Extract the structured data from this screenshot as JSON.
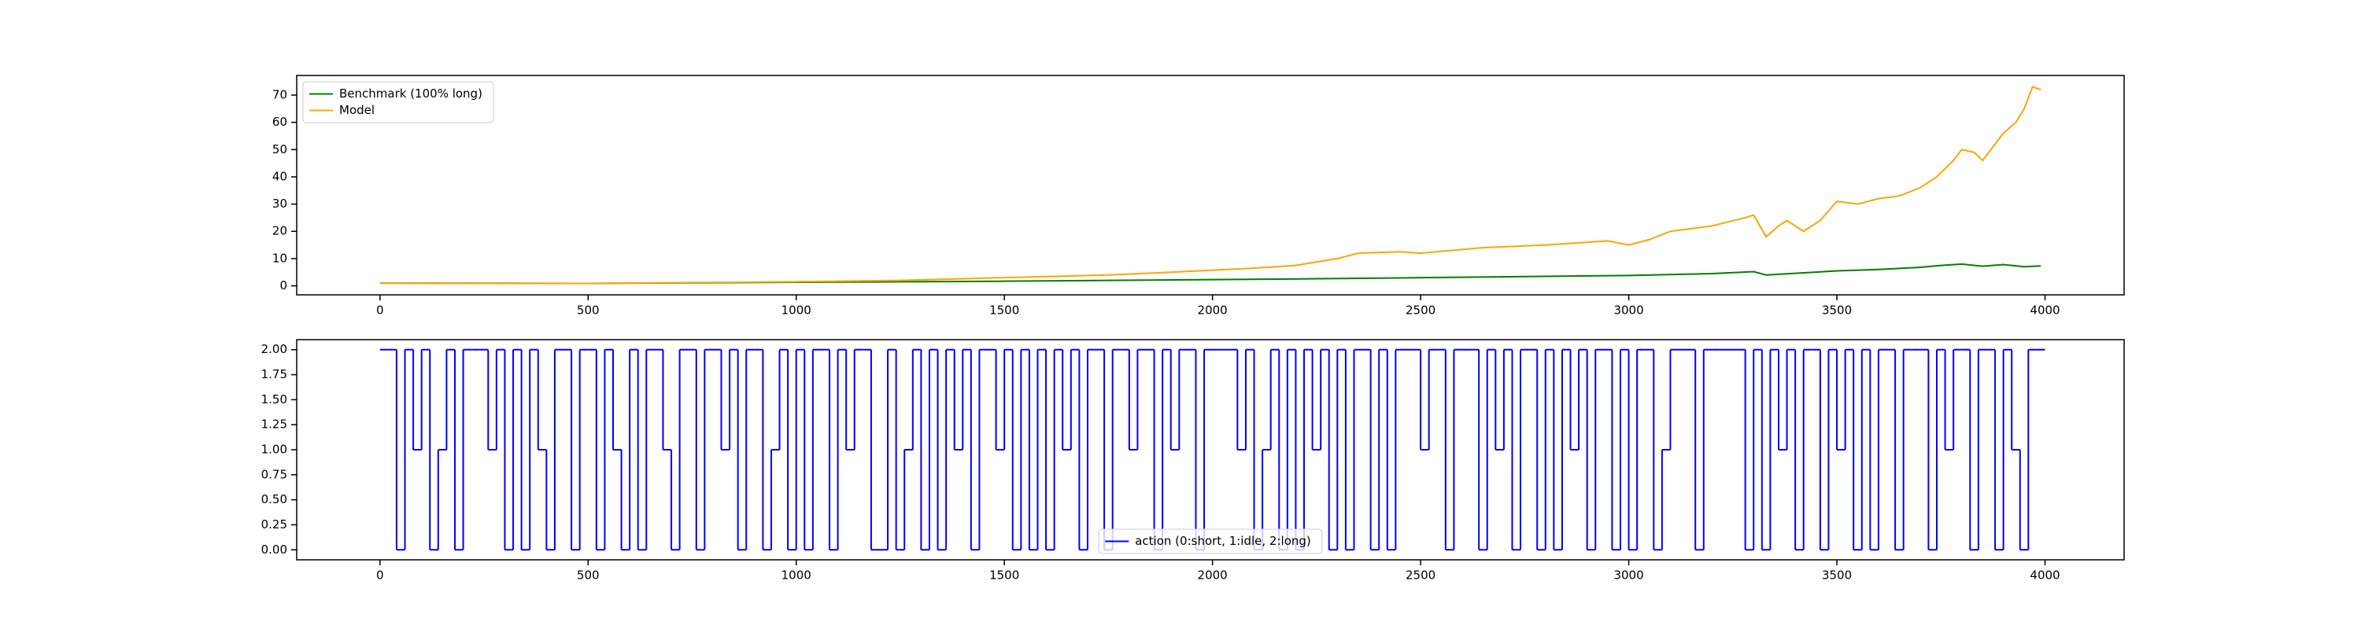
{
  "chart_data": [
    {
      "type": "line",
      "xlim": [
        -200,
        4190
      ],
      "ylim": [
        -3.3,
        77.2
      ],
      "xticks": [
        0,
        500,
        1000,
        1500,
        2000,
        2500,
        3000,
        3500,
        4000
      ],
      "yticks": [
        0,
        10,
        20,
        30,
        40,
        50,
        60,
        70
      ],
      "legend": "upper left",
      "series": [
        {
          "name": "Benchmark (100% long)",
          "color": "#008000",
          "x": [
            0,
            250,
            500,
            750,
            1000,
            1250,
            1500,
            1750,
            2000,
            2250,
            2500,
            2750,
            3000,
            3200,
            3300,
            3330,
            3400,
            3500,
            3600,
            3700,
            3750,
            3800,
            3850,
            3900,
            3950,
            3990
          ],
          "values": [
            1,
            0.95,
            0.9,
            1.1,
            1.3,
            1.5,
            1.7,
            2.0,
            2.3,
            2.6,
            3.0,
            3.4,
            3.8,
            4.5,
            5.2,
            4.0,
            4.6,
            5.5,
            6.0,
            6.8,
            7.5,
            8.0,
            7.2,
            7.8,
            7.0,
            7.3
          ]
        },
        {
          "name": "Model",
          "color": "#ffa500",
          "x": [
            0,
            250,
            500,
            750,
            1000,
            1250,
            1500,
            1750,
            1900,
            2100,
            2200,
            2300,
            2350,
            2450,
            2500,
            2650,
            2800,
            2950,
            3000,
            3050,
            3100,
            3200,
            3280,
            3300,
            3330,
            3360,
            3380,
            3420,
            3460,
            3500,
            3550,
            3600,
            3650,
            3700,
            3740,
            3780,
            3800,
            3830,
            3850,
            3880,
            3900,
            3930,
            3950,
            3970,
            3990
          ],
          "values": [
            1,
            0.9,
            0.9,
            1.2,
            1.5,
            2.0,
            3.0,
            4.0,
            5.0,
            6.5,
            7.5,
            10,
            12,
            12.5,
            12,
            14,
            15,
            16.5,
            15,
            17,
            20,
            22,
            25,
            26,
            18,
            22,
            24,
            20,
            24,
            31,
            30,
            32,
            33,
            36,
            40,
            46,
            50,
            49,
            46,
            52,
            56,
            60,
            65,
            73,
            72
          ]
        }
      ]
    },
    {
      "type": "step",
      "xlim": [
        -200,
        4190
      ],
      "ylim": [
        -0.1,
        2.1
      ],
      "xticks": [
        0,
        500,
        1000,
        1500,
        2000,
        2500,
        3000,
        3500,
        4000
      ],
      "yticks": [
        {
          "value": 0,
          "label": "0.00"
        },
        {
          "value": 0.25,
          "label": "0.25"
        },
        {
          "value": 0.5,
          "label": "0.50"
        },
        {
          "value": 0.75,
          "label": "0.75"
        },
        {
          "value": 1,
          "label": "1.00"
        },
        {
          "value": 1.25,
          "label": "1.25"
        },
        {
          "value": 1.5,
          "label": "1.50"
        },
        {
          "value": 1.75,
          "label": "1.75"
        },
        {
          "value": 2,
          "label": "2.00"
        }
      ],
      "legend": "lower center",
      "series": [
        {
          "name": "action (0:short, 1:idle, 2:long)",
          "color": "#0000ff",
          "x": [
            0,
            20,
            40,
            60,
            80,
            100,
            120,
            140,
            160,
            180,
            200,
            220,
            240,
            260,
            280,
            300,
            320,
            340,
            360,
            380,
            400,
            420,
            440,
            460,
            480,
            500,
            520,
            540,
            560,
            580,
            600,
            620,
            640,
            660,
            680,
            700,
            720,
            740,
            760,
            780,
            800,
            820,
            840,
            860,
            880,
            900,
            920,
            940,
            960,
            980,
            1000,
            1020,
            1040,
            1060,
            1080,
            1100,
            1120,
            1140,
            1160,
            1180,
            1200,
            1220,
            1240,
            1260,
            1280,
            1300,
            1320,
            1340,
            1360,
            1380,
            1400,
            1420,
            1440,
            1460,
            1480,
            1500,
            1520,
            1540,
            1560,
            1580,
            1600,
            1620,
            1640,
            1660,
            1680,
            1700,
            1720,
            1740,
            1760,
            1780,
            1800,
            1820,
            1840,
            1860,
            1880,
            1900,
            1920,
            1940,
            1960,
            1980,
            2000,
            2020,
            2040,
            2060,
            2080,
            2100,
            2120,
            2140,
            2160,
            2180,
            2200,
            2220,
            2240,
            2260,
            2280,
            2300,
            2320,
            2340,
            2360,
            2380,
            2400,
            2420,
            2440,
            2460,
            2480,
            2500,
            2520,
            2540,
            2560,
            2580,
            2600,
            2620,
            2640,
            2660,
            2680,
            2700,
            2720,
            2740,
            2760,
            2780,
            2800,
            2820,
            2840,
            2860,
            2880,
            2900,
            2920,
            2940,
            2960,
            2980,
            3000,
            3020,
            3040,
            3060,
            3080,
            3100,
            3120,
            3140,
            3160,
            3180,
            3200,
            3220,
            3240,
            3260,
            3280,
            3300,
            3320,
            3340,
            3360,
            3380,
            3400,
            3420,
            3440,
            3460,
            3480,
            3500,
            3520,
            3540,
            3560,
            3580,
            3600,
            3620,
            3640,
            3660,
            3680,
            3700,
            3720,
            3740,
            3760,
            3780,
            3800,
            3820,
            3840,
            3860,
            3880,
            3900,
            3920,
            3940,
            3960,
            3980
          ],
          "values": [
            2,
            2,
            0,
            2,
            1,
            2,
            0,
            1,
            2,
            0,
            2,
            2,
            2,
            1,
            2,
            0,
            2,
            0,
            2,
            1,
            0,
            2,
            2,
            0,
            2,
            2,
            0,
            2,
            1,
            0,
            2,
            0,
            2,
            2,
            1,
            0,
            2,
            2,
            0,
            2,
            2,
            1,
            2,
            0,
            2,
            2,
            0,
            1,
            2,
            0,
            2,
            0,
            2,
            2,
            0,
            2,
            1,
            2,
            2,
            0,
            0,
            2,
            0,
            1,
            2,
            0,
            2,
            0,
            2,
            1,
            2,
            0,
            2,
            2,
            1,
            2,
            0,
            2,
            0,
            2,
            0,
            2,
            1,
            2,
            0,
            2,
            2,
            0,
            2,
            2,
            1,
            2,
            2,
            0,
            2,
            1,
            2,
            2,
            0,
            2,
            2,
            2,
            2,
            1,
            2,
            0,
            1,
            2,
            0,
            2,
            0,
            2,
            1,
            2,
            0,
            2,
            0,
            2,
            2,
            0,
            2,
            0,
            2,
            2,
            2,
            1,
            2,
            2,
            0,
            2,
            2,
            2,
            0,
            2,
            1,
            2,
            0,
            2,
            2,
            0,
            2,
            0,
            2,
            1,
            2,
            0,
            2,
            2,
            0,
            2,
            0,
            2,
            2,
            0,
            1,
            2,
            2,
            2,
            0,
            2,
            2,
            2,
            2,
            2,
            0,
            2,
            0,
            2,
            1,
            2,
            0,
            2,
            2,
            0,
            2,
            1,
            2,
            0,
            2,
            0,
            2,
            2,
            0,
            2,
            2,
            2,
            0,
            2,
            1,
            2,
            2,
            0,
            2,
            2,
            0,
            2,
            1,
            0,
            2,
            2
          ]
        }
      ]
    }
  ]
}
